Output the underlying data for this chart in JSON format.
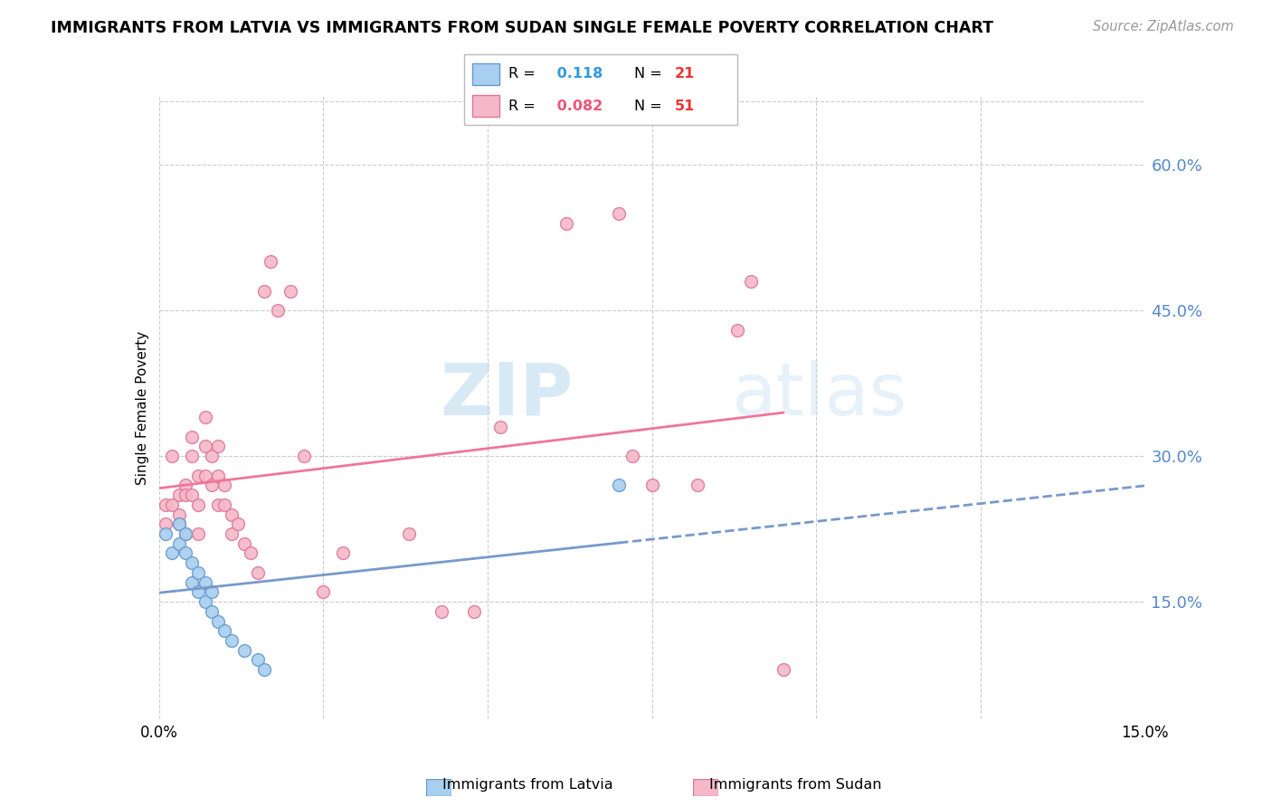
{
  "title": "IMMIGRANTS FROM LATVIA VS IMMIGRANTS FROM SUDAN SINGLE FEMALE POVERTY CORRELATION CHART",
  "source": "Source: ZipAtlas.com",
  "ylabel": "Single Female Poverty",
  "y_ticks": [
    0.15,
    0.3,
    0.45,
    0.6
  ],
  "y_tick_labels": [
    "15.0%",
    "30.0%",
    "45.0%",
    "60.0%"
  ],
  "xlim": [
    0.0,
    0.15
  ],
  "ylim": [
    0.03,
    0.67
  ],
  "legend_labels": [
    "Immigrants from Latvia",
    "Immigrants from Sudan"
  ],
  "legend_r": [
    "0.118",
    "0.082"
  ],
  "legend_n": [
    "21",
    "51"
  ],
  "color_latvia": "#a8cff0",
  "color_sudan": "#f5b8c8",
  "color_latvia_edge": "#6699cc",
  "color_sudan_edge": "#dd7799",
  "color_latvia_line": "#7799cc",
  "color_sudan_line": "#ee7799",
  "watermark_color": "#cce8f8",
  "latvia_x": [
    0.001,
    0.002,
    0.003,
    0.003,
    0.004,
    0.004,
    0.005,
    0.005,
    0.006,
    0.006,
    0.007,
    0.007,
    0.008,
    0.008,
    0.009,
    0.01,
    0.011,
    0.013,
    0.015,
    0.016,
    0.07
  ],
  "latvia_y": [
    0.22,
    0.2,
    0.23,
    0.21,
    0.22,
    0.2,
    0.19,
    0.17,
    0.18,
    0.16,
    0.17,
    0.15,
    0.16,
    0.14,
    0.13,
    0.12,
    0.11,
    0.1,
    0.09,
    0.08,
    0.27
  ],
  "sudan_x": [
    0.001,
    0.001,
    0.002,
    0.002,
    0.003,
    0.003,
    0.003,
    0.004,
    0.004,
    0.004,
    0.005,
    0.005,
    0.005,
    0.006,
    0.006,
    0.006,
    0.007,
    0.007,
    0.007,
    0.008,
    0.008,
    0.009,
    0.009,
    0.009,
    0.01,
    0.01,
    0.011,
    0.011,
    0.012,
    0.013,
    0.014,
    0.015,
    0.016,
    0.017,
    0.018,
    0.02,
    0.022,
    0.025,
    0.028,
    0.038,
    0.043,
    0.048,
    0.052,
    0.062,
    0.07,
    0.072,
    0.075,
    0.082,
    0.088,
    0.09,
    0.095
  ],
  "sudan_y": [
    0.23,
    0.25,
    0.3,
    0.25,
    0.26,
    0.24,
    0.23,
    0.27,
    0.26,
    0.22,
    0.32,
    0.3,
    0.26,
    0.28,
    0.25,
    0.22,
    0.34,
    0.31,
    0.28,
    0.3,
    0.27,
    0.31,
    0.28,
    0.25,
    0.27,
    0.25,
    0.24,
    0.22,
    0.23,
    0.21,
    0.2,
    0.18,
    0.47,
    0.5,
    0.45,
    0.47,
    0.3,
    0.16,
    0.2,
    0.22,
    0.14,
    0.14,
    0.33,
    0.54,
    0.55,
    0.3,
    0.27,
    0.27,
    0.43,
    0.48,
    0.08
  ]
}
